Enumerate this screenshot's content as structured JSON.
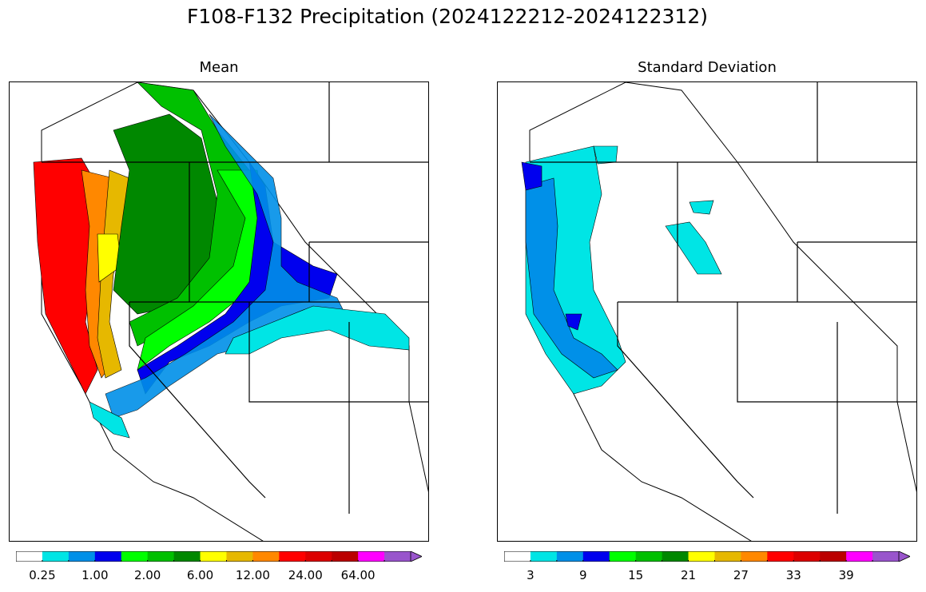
{
  "figure": {
    "title": "F108-F132 Precipitation (2024122212-2024122312)"
  },
  "panels": [
    {
      "title": "Mean",
      "colorbar": {
        "colors": [
          "#ffffff",
          "#00e5e5",
          "#0090e8",
          "#0000ee",
          "#00ff00",
          "#00c000",
          "#008800",
          "#ffff00",
          "#e6b800",
          "#ff8800",
          "#ff0000",
          "#dd0000",
          "#bb0000",
          "#ff00ff",
          "#9955cc"
        ],
        "tick_labels": [
          "0.25",
          "1.00",
          "2.00",
          "6.00",
          "12.00",
          "24.00",
          "64.00"
        ],
        "extend": "max"
      },
      "map_fill_colors": [
        "#ff0000",
        "#ff8800",
        "#e6b800",
        "#ffff00",
        "#008800",
        "#00c000",
        "#00ff00",
        "#0000ee",
        "#0090e8",
        "#00e5e5",
        "#ffffff"
      ]
    },
    {
      "title": "Standard Deviation",
      "colorbar": {
        "colors": [
          "#ffffff",
          "#00e5e5",
          "#0090e8",
          "#0000ee",
          "#00ff00",
          "#00c000",
          "#008800",
          "#ffff00",
          "#e6b800",
          "#ff8800",
          "#ff0000",
          "#dd0000",
          "#bb0000",
          "#ff00ff",
          "#9955cc"
        ],
        "tick_labels": [
          "3",
          "9",
          "15",
          "21",
          "27",
          "33",
          "39"
        ],
        "extend": "max"
      },
      "map_fill_colors": [
        "#0000ee",
        "#0090e8",
        "#00e5e5",
        "#ffffff"
      ]
    }
  ]
}
